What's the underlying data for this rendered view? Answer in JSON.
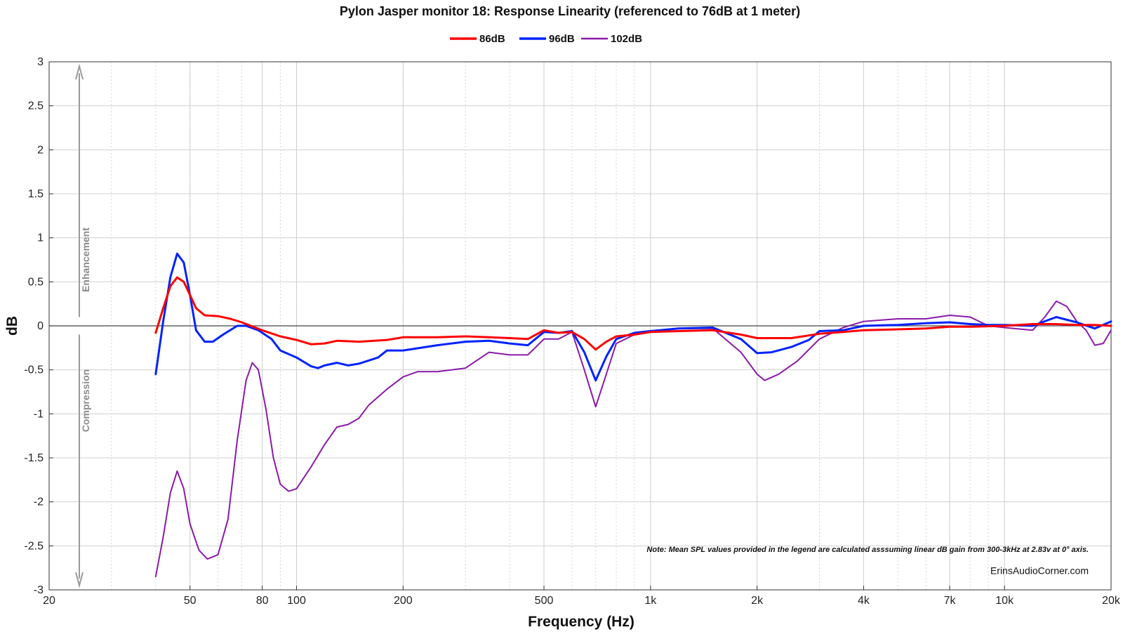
{
  "chart_data": {
    "type": "line",
    "title": "Pylon Jasper monitor 18: Response Linearity (referenced to 76dB at 1 meter)",
    "xlabel": "Frequency (Hz)",
    "ylabel": "dB",
    "xscale": "log",
    "xlim": [
      20,
      20000
    ],
    "ylim": [
      -3,
      3
    ],
    "grid": true,
    "legend_position": "top-center",
    "x_ticks": [
      {
        "value": 20,
        "label": "20"
      },
      {
        "value": 50,
        "label": "50"
      },
      {
        "value": 80,
        "label": "80"
      },
      {
        "value": 100,
        "label": "100"
      },
      {
        "value": 200,
        "label": "200"
      },
      {
        "value": 500,
        "label": "500"
      },
      {
        "value": 1000,
        "label": "1k"
      },
      {
        "value": 2000,
        "label": "2k"
      },
      {
        "value": 4000,
        "label": "4k"
      },
      {
        "value": 7000,
        "label": "7k"
      },
      {
        "value": 10000,
        "label": "10k"
      },
      {
        "value": 20000,
        "label": "20k"
      }
    ],
    "y_ticks": [
      {
        "value": 3,
        "label": "3"
      },
      {
        "value": 2.5,
        "label": "2.5"
      },
      {
        "value": 2,
        "label": "2"
      },
      {
        "value": 1.5,
        "label": "1.5"
      },
      {
        "value": 1,
        "label": "1"
      },
      {
        "value": 0.5,
        "label": "0.5"
      },
      {
        "value": 0,
        "label": "0"
      },
      {
        "value": -0.5,
        "label": "-0.5"
      },
      {
        "value": -1,
        "label": "-1"
      },
      {
        "value": -1.5,
        "label": "-1.5"
      },
      {
        "value": -2,
        "label": "-2"
      },
      {
        "value": -2.5,
        "label": "-2.5"
      },
      {
        "value": -3,
        "label": "-3"
      }
    ],
    "annotations": {
      "enhancement": "Enhancement",
      "compression": "Compression",
      "note": "Note: Mean SPL values provided in the legend are calculated asssuming linear dB gain from 300-3kHz at 2.83v at 0° axis.",
      "credit": "ErinsAudioCorner.com"
    },
    "series": [
      {
        "name": "86dB",
        "color": "#ff0000",
        "points": [
          [
            40,
            -0.08
          ],
          [
            42,
            0.2
          ],
          [
            44,
            0.45
          ],
          [
            46,
            0.55
          ],
          [
            48,
            0.5
          ],
          [
            50,
            0.35
          ],
          [
            52,
            0.2
          ],
          [
            55,
            0.12
          ],
          [
            60,
            0.11
          ],
          [
            65,
            0.08
          ],
          [
            70,
            0.04
          ],
          [
            80,
            -0.05
          ],
          [
            90,
            -0.12
          ],
          [
            100,
            -0.16
          ],
          [
            110,
            -0.21
          ],
          [
            120,
            -0.2
          ],
          [
            130,
            -0.17
          ],
          [
            150,
            -0.18
          ],
          [
            180,
            -0.16
          ],
          [
            200,
            -0.13
          ],
          [
            250,
            -0.13
          ],
          [
            300,
            -0.12
          ],
          [
            350,
            -0.13
          ],
          [
            400,
            -0.14
          ],
          [
            450,
            -0.15
          ],
          [
            500,
            -0.05
          ],
          [
            550,
            -0.08
          ],
          [
            600,
            -0.07
          ],
          [
            650,
            -0.15
          ],
          [
            700,
            -0.27
          ],
          [
            750,
            -0.18
          ],
          [
            800,
            -0.12
          ],
          [
            900,
            -0.1
          ],
          [
            1000,
            -0.07
          ],
          [
            1200,
            -0.06
          ],
          [
            1500,
            -0.05
          ],
          [
            1800,
            -0.1
          ],
          [
            2000,
            -0.14
          ],
          [
            2500,
            -0.14
          ],
          [
            3000,
            -0.09
          ],
          [
            3500,
            -0.07
          ],
          [
            4000,
            -0.05
          ],
          [
            5000,
            -0.04
          ],
          [
            6000,
            -0.03
          ],
          [
            7000,
            -0.01
          ],
          [
            8000,
            -0.01
          ],
          [
            10000,
            0.0
          ],
          [
            12000,
            0.02
          ],
          [
            14000,
            0.02
          ],
          [
            16000,
            0.01
          ],
          [
            18000,
            0.01
          ],
          [
            20000,
            0.0
          ]
        ]
      },
      {
        "name": "96dB",
        "color": "#0022ff",
        "points": [
          [
            40,
            -0.55
          ],
          [
            42,
            0.05
          ],
          [
            44,
            0.55
          ],
          [
            46,
            0.82
          ],
          [
            48,
            0.72
          ],
          [
            50,
            0.35
          ],
          [
            52,
            -0.05
          ],
          [
            55,
            -0.18
          ],
          [
            58,
            -0.18
          ],
          [
            62,
            -0.1
          ],
          [
            68,
            0.0
          ],
          [
            72,
            0.0
          ],
          [
            78,
            -0.05
          ],
          [
            85,
            -0.15
          ],
          [
            90,
            -0.28
          ],
          [
            100,
            -0.36
          ],
          [
            110,
            -0.46
          ],
          [
            115,
            -0.48
          ],
          [
            120,
            -0.45
          ],
          [
            130,
            -0.42
          ],
          [
            140,
            -0.45
          ],
          [
            150,
            -0.43
          ],
          [
            170,
            -0.36
          ],
          [
            180,
            -0.28
          ],
          [
            200,
            -0.28
          ],
          [
            250,
            -0.22
          ],
          [
            300,
            -0.18
          ],
          [
            350,
            -0.17
          ],
          [
            400,
            -0.2
          ],
          [
            450,
            -0.22
          ],
          [
            500,
            -0.07
          ],
          [
            550,
            -0.08
          ],
          [
            600,
            -0.06
          ],
          [
            650,
            -0.3
          ],
          [
            700,
            -0.62
          ],
          [
            750,
            -0.35
          ],
          [
            800,
            -0.15
          ],
          [
            900,
            -0.08
          ],
          [
            1000,
            -0.06
          ],
          [
            1200,
            -0.03
          ],
          [
            1500,
            -0.02
          ],
          [
            1800,
            -0.15
          ],
          [
            2000,
            -0.31
          ],
          [
            2200,
            -0.3
          ],
          [
            2500,
            -0.24
          ],
          [
            2800,
            -0.16
          ],
          [
            3000,
            -0.06
          ],
          [
            3500,
            -0.05
          ],
          [
            4000,
            0.0
          ],
          [
            5000,
            0.01
          ],
          [
            6000,
            0.03
          ],
          [
            7000,
            0.04
          ],
          [
            8000,
            0.02
          ],
          [
            9000,
            0.01
          ],
          [
            10000,
            0.01
          ],
          [
            12000,
            0.0
          ],
          [
            14000,
            0.1
          ],
          [
            16000,
            0.04
          ],
          [
            18000,
            -0.03
          ],
          [
            20000,
            0.05
          ]
        ]
      },
      {
        "name": "102dB",
        "color": "#8b1aa8",
        "points": [
          [
            40,
            -2.85
          ],
          [
            42,
            -2.4
          ],
          [
            44,
            -1.9
          ],
          [
            46,
            -1.65
          ],
          [
            48,
            -1.85
          ],
          [
            50,
            -2.25
          ],
          [
            53,
            -2.55
          ],
          [
            56,
            -2.65
          ],
          [
            60,
            -2.6
          ],
          [
            64,
            -2.2
          ],
          [
            68,
            -1.3
          ],
          [
            72,
            -0.62
          ],
          [
            75,
            -0.42
          ],
          [
            78,
            -0.5
          ],
          [
            82,
            -0.95
          ],
          [
            86,
            -1.5
          ],
          [
            90,
            -1.8
          ],
          [
            95,
            -1.88
          ],
          [
            100,
            -1.85
          ],
          [
            110,
            -1.6
          ],
          [
            120,
            -1.35
          ],
          [
            130,
            -1.15
          ],
          [
            140,
            -1.12
          ],
          [
            150,
            -1.05
          ],
          [
            160,
            -0.9
          ],
          [
            180,
            -0.72
          ],
          [
            200,
            -0.58
          ],
          [
            220,
            -0.52
          ],
          [
            250,
            -0.52
          ],
          [
            300,
            -0.48
          ],
          [
            350,
            -0.3
          ],
          [
            400,
            -0.33
          ],
          [
            450,
            -0.33
          ],
          [
            500,
            -0.15
          ],
          [
            550,
            -0.15
          ],
          [
            600,
            -0.07
          ],
          [
            650,
            -0.5
          ],
          [
            700,
            -0.92
          ],
          [
            750,
            -0.55
          ],
          [
            800,
            -0.2
          ],
          [
            900,
            -0.1
          ],
          [
            1000,
            -0.06
          ],
          [
            1200,
            -0.03
          ],
          [
            1500,
            -0.03
          ],
          [
            1800,
            -0.3
          ],
          [
            2000,
            -0.55
          ],
          [
            2100,
            -0.62
          ],
          [
            2300,
            -0.55
          ],
          [
            2600,
            -0.4
          ],
          [
            3000,
            -0.15
          ],
          [
            3500,
            -0.02
          ],
          [
            4000,
            0.05
          ],
          [
            5000,
            0.08
          ],
          [
            6000,
            0.08
          ],
          [
            7000,
            0.12
          ],
          [
            8000,
            0.1
          ],
          [
            9000,
            0.0
          ],
          [
            10000,
            -0.02
          ],
          [
            12000,
            -0.05
          ],
          [
            13000,
            0.1
          ],
          [
            14000,
            0.28
          ],
          [
            15000,
            0.22
          ],
          [
            16000,
            0.05
          ],
          [
            17000,
            -0.05
          ],
          [
            18000,
            -0.22
          ],
          [
            19000,
            -0.2
          ],
          [
            20000,
            -0.05
          ]
        ]
      }
    ]
  }
}
